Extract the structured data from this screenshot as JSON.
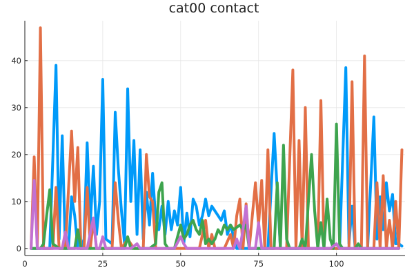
{
  "chart_data": {
    "type": "line",
    "title": "cat00 contact",
    "xlabel": "",
    "ylabel": "",
    "xlim": [
      0,
      122
    ],
    "ylim": [
      -1.5,
      48.5
    ],
    "xticks": [
      0,
      25,
      50,
      75,
      100
    ],
    "yticks": [
      0,
      10,
      20,
      30,
      40
    ],
    "grid": true,
    "legend": "none",
    "series": [
      {
        "color": "#009af9",
        "points": [
          [
            2,
            0
          ],
          [
            4,
            0
          ],
          [
            6,
            0
          ],
          [
            8,
            0
          ],
          [
            10,
            39
          ],
          [
            11,
            2
          ],
          [
            12,
            24
          ],
          [
            13,
            0
          ],
          [
            14,
            0
          ],
          [
            15,
            11
          ],
          [
            16,
            7
          ],
          [
            17,
            0
          ],
          [
            18,
            0
          ],
          [
            19,
            2
          ],
          [
            20,
            22.5
          ],
          [
            21,
            5
          ],
          [
            22,
            17.5
          ],
          [
            23,
            3
          ],
          [
            24,
            10
          ],
          [
            25,
            36
          ],
          [
            26,
            2
          ],
          [
            28,
            1
          ],
          [
            29,
            29
          ],
          [
            30,
            17
          ],
          [
            31,
            8
          ],
          [
            32,
            1
          ],
          [
            33,
            34
          ],
          [
            34,
            10
          ],
          [
            35,
            23
          ],
          [
            36,
            3
          ],
          [
            37,
            21
          ],
          [
            38,
            2
          ],
          [
            39,
            12
          ],
          [
            40,
            5
          ],
          [
            41,
            16
          ],
          [
            42,
            6
          ],
          [
            43,
            4
          ],
          [
            44,
            9
          ],
          [
            45,
            3
          ],
          [
            46,
            10
          ],
          [
            47,
            4
          ],
          [
            48,
            8
          ],
          [
            49,
            5
          ],
          [
            50,
            13
          ],
          [
            51,
            1
          ],
          [
            52,
            7.5
          ],
          [
            53,
            2.5
          ],
          [
            54,
            10.5
          ],
          [
            55,
            9
          ],
          [
            56,
            5
          ],
          [
            57,
            7
          ],
          [
            58,
            10.5
          ],
          [
            59,
            7
          ],
          [
            60,
            9
          ],
          [
            61,
            8
          ],
          [
            62,
            7
          ],
          [
            63,
            6
          ],
          [
            64,
            8
          ],
          [
            65,
            3
          ],
          [
            66,
            5
          ],
          [
            68,
            0
          ],
          [
            72,
            0
          ],
          [
            75,
            0
          ],
          [
            78,
            0
          ],
          [
            80,
            24.5
          ],
          [
            82,
            0
          ],
          [
            86,
            0
          ],
          [
            90,
            0
          ],
          [
            94,
            0
          ],
          [
            98,
            0
          ],
          [
            101,
            0
          ],
          [
            103,
            38.5
          ],
          [
            104,
            1
          ],
          [
            105,
            9
          ],
          [
            106,
            0
          ],
          [
            108,
            0
          ],
          [
            110,
            0
          ],
          [
            112,
            28
          ],
          [
            113,
            2
          ],
          [
            114,
            11
          ],
          [
            115,
            4
          ],
          [
            116,
            14
          ],
          [
            117,
            8
          ],
          [
            118,
            11.5
          ],
          [
            119,
            1
          ],
          [
            120,
            1
          ],
          [
            121,
            0.5
          ]
        ]
      },
      {
        "color": "#e26f46",
        "points": [
          [
            2,
            0
          ],
          [
            3,
            19.5
          ],
          [
            4,
            0
          ],
          [
            5,
            47
          ],
          [
            6,
            0
          ],
          [
            8,
            0
          ],
          [
            9,
            0
          ],
          [
            10,
            13
          ],
          [
            11,
            0
          ],
          [
            13,
            0
          ],
          [
            15,
            25
          ],
          [
            16,
            10
          ],
          [
            17,
            21.5
          ],
          [
            18,
            0
          ],
          [
            19,
            0
          ],
          [
            20,
            13
          ],
          [
            21,
            0
          ],
          [
            22,
            6
          ],
          [
            23,
            0
          ],
          [
            25,
            0
          ],
          [
            27,
            0
          ],
          [
            28,
            0
          ],
          [
            29,
            14
          ],
          [
            30,
            6
          ],
          [
            31,
            0
          ],
          [
            33,
            2
          ],
          [
            35,
            0
          ],
          [
            37,
            0
          ],
          [
            38,
            0
          ],
          [
            39,
            20
          ],
          [
            40,
            11
          ],
          [
            41,
            10
          ],
          [
            42,
            0
          ],
          [
            44,
            0
          ],
          [
            46,
            0
          ],
          [
            48,
            0
          ],
          [
            50,
            0
          ],
          [
            52,
            0
          ],
          [
            54,
            0
          ],
          [
            56,
            0
          ],
          [
            58,
            6
          ],
          [
            59,
            0
          ],
          [
            60,
            3
          ],
          [
            61,
            0
          ],
          [
            62,
            0
          ],
          [
            64,
            0
          ],
          [
            66,
            3
          ],
          [
            67,
            0
          ],
          [
            68,
            7
          ],
          [
            69,
            10.5
          ],
          [
            70,
            0
          ],
          [
            71,
            9.5
          ],
          [
            72,
            0
          ],
          [
            74,
            14
          ],
          [
            75,
            5
          ],
          [
            76,
            14.5
          ],
          [
            77,
            0
          ],
          [
            78,
            21
          ],
          [
            79,
            0
          ],
          [
            80,
            0
          ],
          [
            82,
            0
          ],
          [
            84,
            0
          ],
          [
            86,
            38
          ],
          [
            87,
            0
          ],
          [
            88,
            23
          ],
          [
            89,
            0
          ],
          [
            90,
            30
          ],
          [
            91,
            0
          ],
          [
            92,
            0
          ],
          [
            94,
            0
          ],
          [
            95,
            31.5
          ],
          [
            96,
            0
          ],
          [
            98,
            0
          ],
          [
            100,
            0
          ],
          [
            102,
            0
          ],
          [
            104,
            0
          ],
          [
            105,
            35.5
          ],
          [
            106,
            0
          ],
          [
            108,
            0
          ],
          [
            109,
            41
          ],
          [
            110,
            0
          ],
          [
            112,
            0
          ],
          [
            113,
            14
          ],
          [
            114,
            0
          ],
          [
            115,
            15.5
          ],
          [
            116,
            0
          ],
          [
            117,
            6
          ],
          [
            118,
            0
          ],
          [
            119,
            10
          ],
          [
            120,
            0
          ],
          [
            121,
            21
          ]
        ]
      },
      {
        "color": "#3ea44e",
        "points": [
          [
            2,
            0
          ],
          [
            5,
            0
          ],
          [
            6,
            1
          ],
          [
            7,
            7
          ],
          [
            8,
            12.5
          ],
          [
            9,
            1
          ],
          [
            11,
            0
          ],
          [
            13,
            0
          ],
          [
            16,
            0
          ],
          [
            17,
            4
          ],
          [
            18,
            0
          ],
          [
            20,
            0
          ],
          [
            22,
            0
          ],
          [
            26,
            0
          ],
          [
            30,
            0
          ],
          [
            32,
            0
          ],
          [
            33,
            2.5
          ],
          [
            34,
            0
          ],
          [
            38,
            0
          ],
          [
            40,
            0
          ],
          [
            42,
            1
          ],
          [
            43,
            12
          ],
          [
            44,
            14
          ],
          [
            45,
            1
          ],
          [
            46,
            0
          ],
          [
            48,
            0
          ],
          [
            50,
            5
          ],
          [
            51,
            2
          ],
          [
            52,
            3
          ],
          [
            53,
            5
          ],
          [
            54,
            6
          ],
          [
            55,
            4
          ],
          [
            56,
            3
          ],
          [
            57,
            6
          ],
          [
            58,
            1
          ],
          [
            59,
            2
          ],
          [
            60,
            1
          ],
          [
            61,
            2
          ],
          [
            62,
            4
          ],
          [
            63,
            3
          ],
          [
            64,
            5
          ],
          [
            65,
            4
          ],
          [
            66,
            5
          ],
          [
            67,
            4
          ],
          [
            68,
            4.5
          ],
          [
            69,
            5
          ],
          [
            70,
            4
          ],
          [
            71,
            5
          ],
          [
            72,
            0
          ],
          [
            74,
            0
          ],
          [
            76,
            0
          ],
          [
            78,
            0
          ],
          [
            80,
            0
          ],
          [
            81,
            14
          ],
          [
            82,
            0
          ],
          [
            83,
            22
          ],
          [
            84,
            2
          ],
          [
            85,
            0
          ],
          [
            86,
            0
          ],
          [
            88,
            0
          ],
          [
            89,
            2
          ],
          [
            90,
            0
          ],
          [
            92,
            20
          ],
          [
            93,
            8
          ],
          [
            94,
            0
          ],
          [
            95,
            5.5
          ],
          [
            96,
            0
          ],
          [
            97,
            10.5
          ],
          [
            98,
            2
          ],
          [
            99,
            0
          ],
          [
            100,
            26.5
          ],
          [
            101,
            1
          ],
          [
            102,
            0
          ],
          [
            104,
            0
          ],
          [
            106,
            0
          ],
          [
            107,
            1
          ],
          [
            108,
            0
          ],
          [
            110,
            0
          ],
          [
            112,
            0
          ],
          [
            114,
            0
          ],
          [
            116,
            0
          ],
          [
            118,
            0
          ],
          [
            120,
            0
          ]
        ]
      },
      {
        "color": "#c271d2",
        "points": [
          [
            2,
            0
          ],
          [
            3,
            14.5
          ],
          [
            4,
            0
          ],
          [
            6,
            0
          ],
          [
            8,
            0
          ],
          [
            10,
            0
          ],
          [
            12,
            0
          ],
          [
            13,
            3.5
          ],
          [
            14,
            0
          ],
          [
            16,
            0
          ],
          [
            18,
            0
          ],
          [
            20,
            0
          ],
          [
            22,
            6.5
          ],
          [
            23,
            0
          ],
          [
            24,
            0
          ],
          [
            25,
            2.5
          ],
          [
            26,
            0
          ],
          [
            28,
            0
          ],
          [
            30,
            0
          ],
          [
            34,
            0
          ],
          [
            36,
            1
          ],
          [
            37,
            0
          ],
          [
            40,
            0
          ],
          [
            44,
            0
          ],
          [
            48,
            0
          ],
          [
            50,
            2.5
          ],
          [
            51,
            1
          ],
          [
            52,
            0
          ],
          [
            56,
            0
          ],
          [
            60,
            0
          ],
          [
            64,
            0
          ],
          [
            67,
            0
          ],
          [
            68,
            2
          ],
          [
            69,
            0
          ],
          [
            70,
            4
          ],
          [
            71,
            9
          ],
          [
            72,
            0
          ],
          [
            74,
            0
          ],
          [
            75,
            5.5
          ],
          [
            76,
            0
          ],
          [
            80,
            0
          ],
          [
            84,
            0
          ],
          [
            88,
            0
          ],
          [
            92,
            0
          ],
          [
            96,
            0
          ],
          [
            98,
            0
          ],
          [
            100,
            1
          ],
          [
            101,
            0
          ],
          [
            104,
            0
          ],
          [
            108,
            0
          ],
          [
            112,
            0
          ],
          [
            116,
            0
          ],
          [
            120,
            0
          ]
        ]
      }
    ]
  }
}
